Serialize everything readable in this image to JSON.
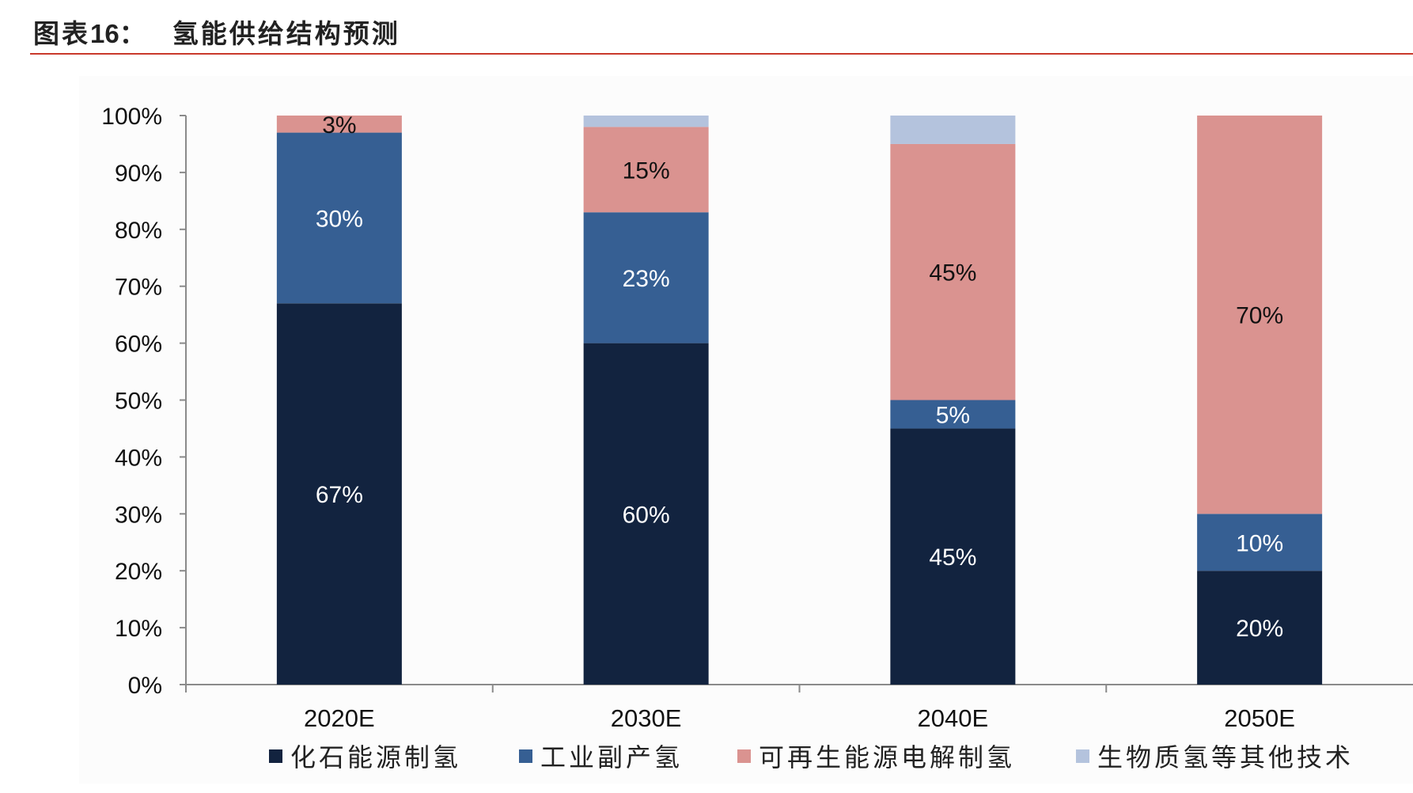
{
  "header": {
    "title_prefix": "图表",
    "title_number": "16：",
    "title_text": "氢能供给结构预测"
  },
  "colors": {
    "fossil": "#12233f",
    "industrial": "#365f93",
    "renewable": "#da9390",
    "biomass": "#b4c3dd",
    "rule": "#c9392b"
  },
  "chart_data": {
    "type": "bar",
    "stacked": true,
    "percent": true,
    "title": "氢能供给结构预测",
    "categories": [
      "2020E",
      "2030E",
      "2040E",
      "2050E"
    ],
    "series": [
      {
        "name": "化石能源制氢",
        "values": [
          67,
          60,
          45,
          20
        ],
        "labels": [
          "67%",
          "60%",
          "45%",
          "20%"
        ]
      },
      {
        "name": "工业副产氢",
        "values": [
          30,
          23,
          5,
          10
        ],
        "labels": [
          "30%",
          "23%",
          "5%",
          "10%"
        ]
      },
      {
        "name": "可再生能源电解制氢",
        "values": [
          3,
          15,
          45,
          70
        ],
        "labels": [
          "3%",
          "15%",
          "45%",
          "70%"
        ]
      },
      {
        "name": "生物质氢等其他技术",
        "values": [
          0,
          2,
          5,
          0
        ],
        "labels": [
          "",
          "",
          "",
          ""
        ]
      }
    ],
    "yticks": [
      "0%",
      "10%",
      "20%",
      "30%",
      "40%",
      "50%",
      "60%",
      "70%",
      "80%",
      "90%",
      "100%"
    ],
    "ylim": [
      0,
      100
    ],
    "xlabel": "",
    "ylabel": "",
    "legend_position": "bottom"
  }
}
